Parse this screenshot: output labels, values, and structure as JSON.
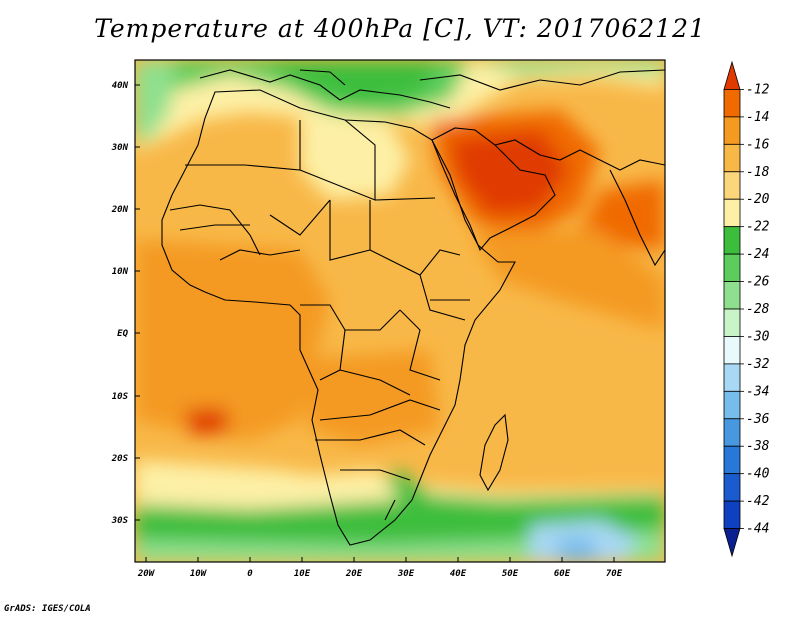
{
  "title": "Temperature at 400hPa [C], VT: 2017062121",
  "credit": "GrADS: IGES/COLA",
  "map": {
    "lat_labels": [
      "40N",
      "30N",
      "20N",
      "10N",
      "EQ",
      "10S",
      "20S",
      "30S"
    ],
    "lon_labels": [
      "20W",
      "10W",
      "0",
      "10E",
      "20E",
      "30E",
      "40E",
      "50E",
      "60E",
      "70E"
    ]
  },
  "colorbar": {
    "labels": [
      "-12",
      "-14",
      "-16",
      "-18",
      "-20",
      "-22",
      "-24",
      "-26",
      "-28",
      "-30",
      "-32",
      "-34",
      "-36",
      "-38",
      "-40",
      "-42",
      "-44"
    ],
    "colors": [
      "#e03a00",
      "#f06a00",
      "#f49a20",
      "#f8b848",
      "#fbd67a",
      "#fdf0a6",
      "#3cbe3c",
      "#5ccd5c",
      "#8ee08e",
      "#c8f4c8",
      "#e8fafc",
      "#a8d8f4",
      "#78bcec",
      "#4898e0",
      "#2878d8",
      "#1a5cd0",
      "#0e40c0",
      "#0a2090"
    ]
  }
}
